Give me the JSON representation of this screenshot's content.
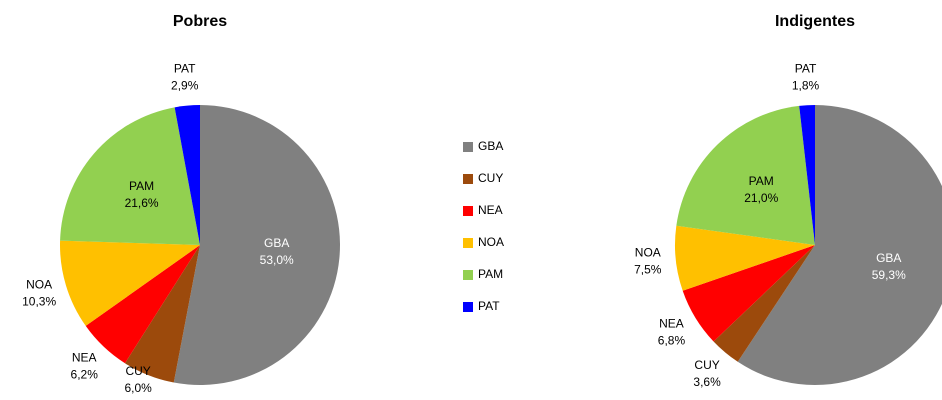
{
  "chart_data": [
    {
      "type": "pie",
      "title": "Pobres",
      "categories": [
        "GBA",
        "CUY",
        "NEA",
        "NOA",
        "PAM",
        "PAT"
      ],
      "values": [
        53.0,
        6.0,
        6.2,
        10.3,
        21.6,
        2.9
      ],
      "value_labels": [
        "53,0%",
        "6,0%",
        "6,2%",
        "10,3%",
        "21,6%",
        "2,9%"
      ],
      "colors": [
        "#808080",
        "#9c4a0c",
        "#ff0000",
        "#ffc000",
        "#92d050",
        "#0000ff"
      ]
    },
    {
      "type": "pie",
      "title": "Indigentes",
      "categories": [
        "GBA",
        "CUY",
        "NEA",
        "NOA",
        "PAM",
        "PAT"
      ],
      "values": [
        59.3,
        3.6,
        6.8,
        7.5,
        21.0,
        1.8
      ],
      "value_labels": [
        "59,3%",
        "3,6%",
        "6,8%",
        "7,5%",
        "21,0%",
        "1,8%"
      ],
      "colors": [
        "#808080",
        "#9c4a0c",
        "#ff0000",
        "#ffc000",
        "#92d050",
        "#0000ff"
      ]
    }
  ]
}
